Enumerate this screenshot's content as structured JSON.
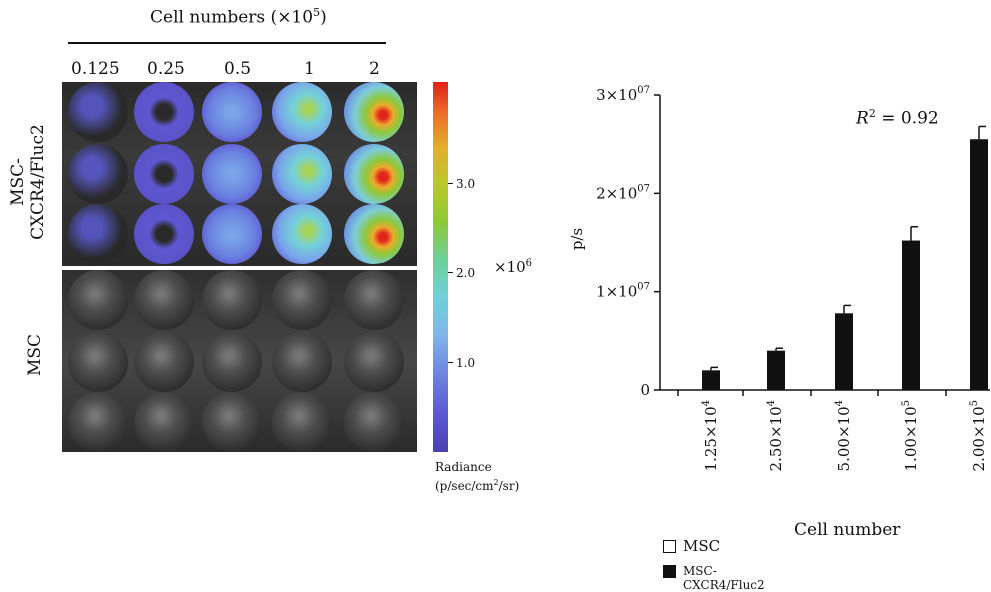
{
  "left_panel": {
    "header": "Cell numbers (×10",
    "header_exp": "5",
    "header_close": ")",
    "columns": [
      "0.125",
      "0.25",
      "0.5",
      "1",
      "2"
    ],
    "row_label_top": "MSC-\nCXCR4/Fluc2",
    "row_label_top_1": "MSC-",
    "row_label_top_2": "CXCR4/Fluc2",
    "row_label_bottom": "MSC"
  },
  "colorbar": {
    "ticks": [
      "3.0",
      "2.0",
      "1.0"
    ],
    "multiplier": "×10",
    "multiplier_exp": "6",
    "title_1": "Radiance",
    "title_2": "(p/sec/cm",
    "title_2_exp": "2",
    "title_2_close": "/sr)"
  },
  "chart_data": {
    "type": "bar",
    "ylabel": "p/s",
    "xlabel": "Cell number",
    "annotation": "R",
    "annotation_exp": "2",
    "annotation_rest": " = 0.92",
    "ylim": [
      0,
      30000000
    ],
    "ytick_labels": [
      {
        "value": 30000000,
        "base": "3×10",
        "exp": "07"
      },
      {
        "value": 20000000,
        "base": "2×10",
        "exp": "07"
      },
      {
        "value": 10000000,
        "base": "1×10",
        "exp": "07"
      },
      {
        "value": 0,
        "base": "0",
        "exp": ""
      }
    ],
    "categories": [
      {
        "base": "1.25×10",
        "exp": "4"
      },
      {
        "base": "2.50×10",
        "exp": "4"
      },
      {
        "base": "5.00×10",
        "exp": "4"
      },
      {
        "base": "1.00×10",
        "exp": "5"
      },
      {
        "base": "2.00×10",
        "exp": "5"
      }
    ],
    "series": [
      {
        "name": "MSC",
        "color": "#ffffff",
        "values": [
          0,
          0,
          0,
          0,
          0
        ],
        "errors": [
          0,
          0,
          0,
          0,
          0
        ]
      },
      {
        "name": "MSC-CXCR4/Fluc2",
        "color": "#111111",
        "values": [
          2000000,
          4000000,
          7800000,
          15200000,
          25500000
        ],
        "errors": [
          300000,
          250000,
          800000,
          1400000,
          1300000
        ]
      }
    ]
  },
  "legend": [
    {
      "label": "MSC",
      "color": "#ffffff"
    },
    {
      "label": "MSC-CXCR4/Fluc2",
      "color": "#111111"
    }
  ]
}
